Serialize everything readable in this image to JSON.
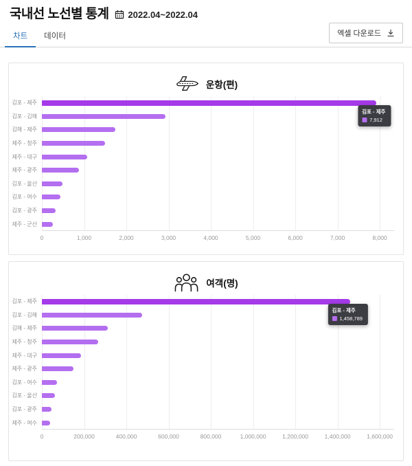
{
  "header": {
    "title": "국내선 노선별 통계",
    "date_range": "2022.04~2022.04",
    "excel_button_label": "엑셀 다운로드",
    "calendar_icon": "calendar-icon",
    "download_icon": "download-icon"
  },
  "tabs": [
    {
      "label": "차트",
      "active": true
    },
    {
      "label": "데이터",
      "active": false
    }
  ],
  "colors": {
    "bar": "#b46ef0",
    "bar_hover": "#a43ae8",
    "tab_active": "#2970b8",
    "tooltip_bg": "#3c3c43"
  },
  "chart_data": [
    {
      "type": "bar",
      "orientation": "horizontal",
      "title": "운항(편)",
      "icon": "airplane-icon",
      "categories": [
        "김포 - 제주",
        "김포 - 김해",
        "김해 - 제주",
        "제주 - 청주",
        "제주 - 대구",
        "제주 - 광주",
        "김포 - 울산",
        "김포 - 여수",
        "김포 - 광주",
        "제주 - 군산"
      ],
      "values": [
        7912,
        2930,
        1740,
        1500,
        1070,
        880,
        480,
        440,
        320,
        260
      ],
      "xlabel": "",
      "ylabel": "",
      "xlim": [
        0,
        8340
      ],
      "grid": true,
      "ticks": [
        {
          "value": 0,
          "label": "0"
        },
        {
          "value": 1000,
          "label": "1,000"
        },
        {
          "value": 2000,
          "label": "2,000"
        },
        {
          "value": 3000,
          "label": "3,000"
        },
        {
          "value": 4000,
          "label": "4,000"
        },
        {
          "value": 5000,
          "label": "5,000"
        },
        {
          "value": 6000,
          "label": "6,000"
        },
        {
          "value": 7000,
          "label": "7,000"
        },
        {
          "value": 8000,
          "label": "8,000"
        }
      ],
      "tooltip": {
        "category": "김포 - 제주",
        "value_label": "7,912"
      }
    },
    {
      "type": "bar",
      "orientation": "horizontal",
      "title": "여객(명)",
      "icon": "people-icon",
      "categories": [
        "김포 - 제주",
        "김포 - 김해",
        "김해 - 제주",
        "제주 - 청주",
        "제주 - 대구",
        "제주 - 광주",
        "김포 - 여수",
        "김포 - 울산",
        "김포 - 광주",
        "제주 - 여수"
      ],
      "values": [
        1458789,
        476000,
        313000,
        266000,
        185000,
        149000,
        70000,
        61000,
        44000,
        39000
      ],
      "xlabel": "",
      "ylabel": "",
      "xlim": [
        0,
        1668000
      ],
      "grid": true,
      "ticks": [
        {
          "value": 0,
          "label": "0"
        },
        {
          "value": 200000,
          "label": "200,000"
        },
        {
          "value": 400000,
          "label": "400,000"
        },
        {
          "value": 600000,
          "label": "600,000"
        },
        {
          "value": 800000,
          "label": "800,000"
        },
        {
          "value": 1000000,
          "label": "1,000,000"
        },
        {
          "value": 1200000,
          "label": "1,200,000"
        },
        {
          "value": 1400000,
          "label": "1,400,000"
        },
        {
          "value": 1600000,
          "label": "1,600,000"
        }
      ],
      "tooltip": {
        "category": "김포 - 제주",
        "value_label": "1,458,789"
      }
    }
  ]
}
